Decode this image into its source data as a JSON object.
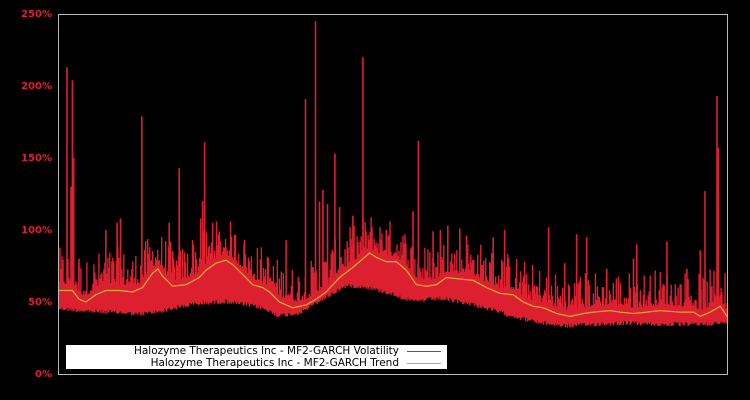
{
  "chart_data": {
    "type": "line",
    "title": "",
    "xlabel": "",
    "ylabel": "",
    "ylim": [
      0,
      250
    ],
    "y_ticks": [
      "0%",
      "50%",
      "100%",
      "150%",
      "200%",
      "250%"
    ],
    "x_ticks": [],
    "grid": false,
    "legend_position": "lower-left",
    "series": [
      {
        "name": "Halozyme Therapeutics Inc - MF2-GARCH Volatility",
        "color": "#dd2030",
        "baseline": [
          [
            0.0,
            47
          ],
          [
            0.05,
            45
          ],
          [
            0.1,
            44
          ],
          [
            0.12,
            43
          ],
          [
            0.15,
            45
          ],
          [
            0.2,
            50
          ],
          [
            0.25,
            52
          ],
          [
            0.3,
            48
          ],
          [
            0.33,
            42
          ],
          [
            0.36,
            44
          ],
          [
            0.4,
            55
          ],
          [
            0.43,
            63
          ],
          [
            0.46,
            62
          ],
          [
            0.5,
            57
          ],
          [
            0.53,
            52
          ],
          [
            0.57,
            54
          ],
          [
            0.62,
            50
          ],
          [
            0.67,
            43
          ],
          [
            0.72,
            37
          ],
          [
            0.76,
            35
          ],
          [
            0.8,
            36
          ],
          [
            0.85,
            37
          ],
          [
            0.9,
            36
          ],
          [
            0.95,
            36
          ],
          [
            1.0,
            37
          ]
        ],
        "spikes": [
          [
            0.012,
            213
          ],
          [
            0.018,
            130
          ],
          [
            0.02,
            204
          ],
          [
            0.022,
            150
          ],
          [
            0.03,
            80
          ],
          [
            0.07,
            100
          ],
          [
            0.087,
            105
          ],
          [
            0.092,
            108
          ],
          [
            0.124,
            179
          ],
          [
            0.14,
            75
          ],
          [
            0.165,
            105
          ],
          [
            0.18,
            143
          ],
          [
            0.2,
            93
          ],
          [
            0.212,
            108
          ],
          [
            0.215,
            120
          ],
          [
            0.218,
            161
          ],
          [
            0.23,
            105
          ],
          [
            0.25,
            88
          ],
          [
            0.277,
            90
          ],
          [
            0.34,
            93
          ],
          [
            0.369,
            191
          ],
          [
            0.384,
            245
          ],
          [
            0.39,
            120
          ],
          [
            0.395,
            128
          ],
          [
            0.402,
            118
          ],
          [
            0.413,
            153
          ],
          [
            0.42,
            116
          ],
          [
            0.44,
            110
          ],
          [
            0.455,
            220
          ],
          [
            0.49,
            100
          ],
          [
            0.53,
            113
          ],
          [
            0.538,
            162
          ],
          [
            0.56,
            99
          ],
          [
            0.571,
            100
          ],
          [
            0.582,
            103
          ],
          [
            0.6,
            101
          ],
          [
            0.61,
            96
          ],
          [
            0.65,
            95
          ],
          [
            0.667,
            100
          ],
          [
            0.733,
            102
          ],
          [
            0.757,
            77
          ],
          [
            0.775,
            97
          ],
          [
            0.79,
            95
          ],
          [
            0.82,
            73
          ],
          [
            0.86,
            80
          ],
          [
            0.865,
            90
          ],
          [
            0.91,
            92
          ],
          [
            0.94,
            73
          ],
          [
            0.96,
            86
          ],
          [
            0.967,
            127
          ],
          [
            0.985,
            193
          ],
          [
            0.987,
            157
          ]
        ]
      },
      {
        "name": "Halozyme Therapeutics Inc - MF2-GARCH Trend",
        "color": "#d4a830",
        "points": [
          [
            0.0,
            58
          ],
          [
            0.02,
            58
          ],
          [
            0.03,
            52
          ],
          [
            0.04,
            50
          ],
          [
            0.055,
            55
          ],
          [
            0.07,
            58
          ],
          [
            0.09,
            58
          ],
          [
            0.11,
            57
          ],
          [
            0.125,
            60
          ],
          [
            0.14,
            70
          ],
          [
            0.148,
            73
          ],
          [
            0.155,
            68
          ],
          [
            0.17,
            61
          ],
          [
            0.19,
            62
          ],
          [
            0.21,
            67
          ],
          [
            0.22,
            72
          ],
          [
            0.235,
            77
          ],
          [
            0.25,
            79
          ],
          [
            0.26,
            76
          ],
          [
            0.275,
            69
          ],
          [
            0.29,
            62
          ],
          [
            0.305,
            60
          ],
          [
            0.315,
            57
          ],
          [
            0.33,
            50
          ],
          [
            0.35,
            46
          ],
          [
            0.37,
            48
          ],
          [
            0.385,
            52
          ],
          [
            0.4,
            57
          ],
          [
            0.42,
            67
          ],
          [
            0.44,
            74
          ],
          [
            0.455,
            80
          ],
          [
            0.465,
            84
          ],
          [
            0.475,
            81
          ],
          [
            0.49,
            78
          ],
          [
            0.505,
            78
          ],
          [
            0.52,
            72
          ],
          [
            0.535,
            62
          ],
          [
            0.55,
            61
          ],
          [
            0.565,
            62
          ],
          [
            0.58,
            67
          ],
          [
            0.6,
            66
          ],
          [
            0.62,
            65
          ],
          [
            0.64,
            60
          ],
          [
            0.66,
            56
          ],
          [
            0.68,
            55
          ],
          [
            0.695,
            50
          ],
          [
            0.71,
            47
          ],
          [
            0.725,
            46
          ],
          [
            0.745,
            42
          ],
          [
            0.765,
            40
          ],
          [
            0.785,
            42
          ],
          [
            0.8,
            43
          ],
          [
            0.825,
            44
          ],
          [
            0.84,
            43
          ],
          [
            0.86,
            42
          ],
          [
            0.88,
            43
          ],
          [
            0.9,
            44
          ],
          [
            0.93,
            43
          ],
          [
            0.95,
            43
          ],
          [
            0.96,
            40
          ],
          [
            0.975,
            43
          ],
          [
            0.99,
            47
          ],
          [
            1.0,
            40
          ]
        ]
      }
    ]
  },
  "legend": {
    "items": [
      {
        "label": "Halozyme Therapeutics Inc - MF2-GARCH Volatility",
        "color": "#dd2030"
      },
      {
        "label": "Halozyme Therapeutics Inc - MF2-GARCH Trend",
        "color": "#d4a830"
      }
    ]
  }
}
